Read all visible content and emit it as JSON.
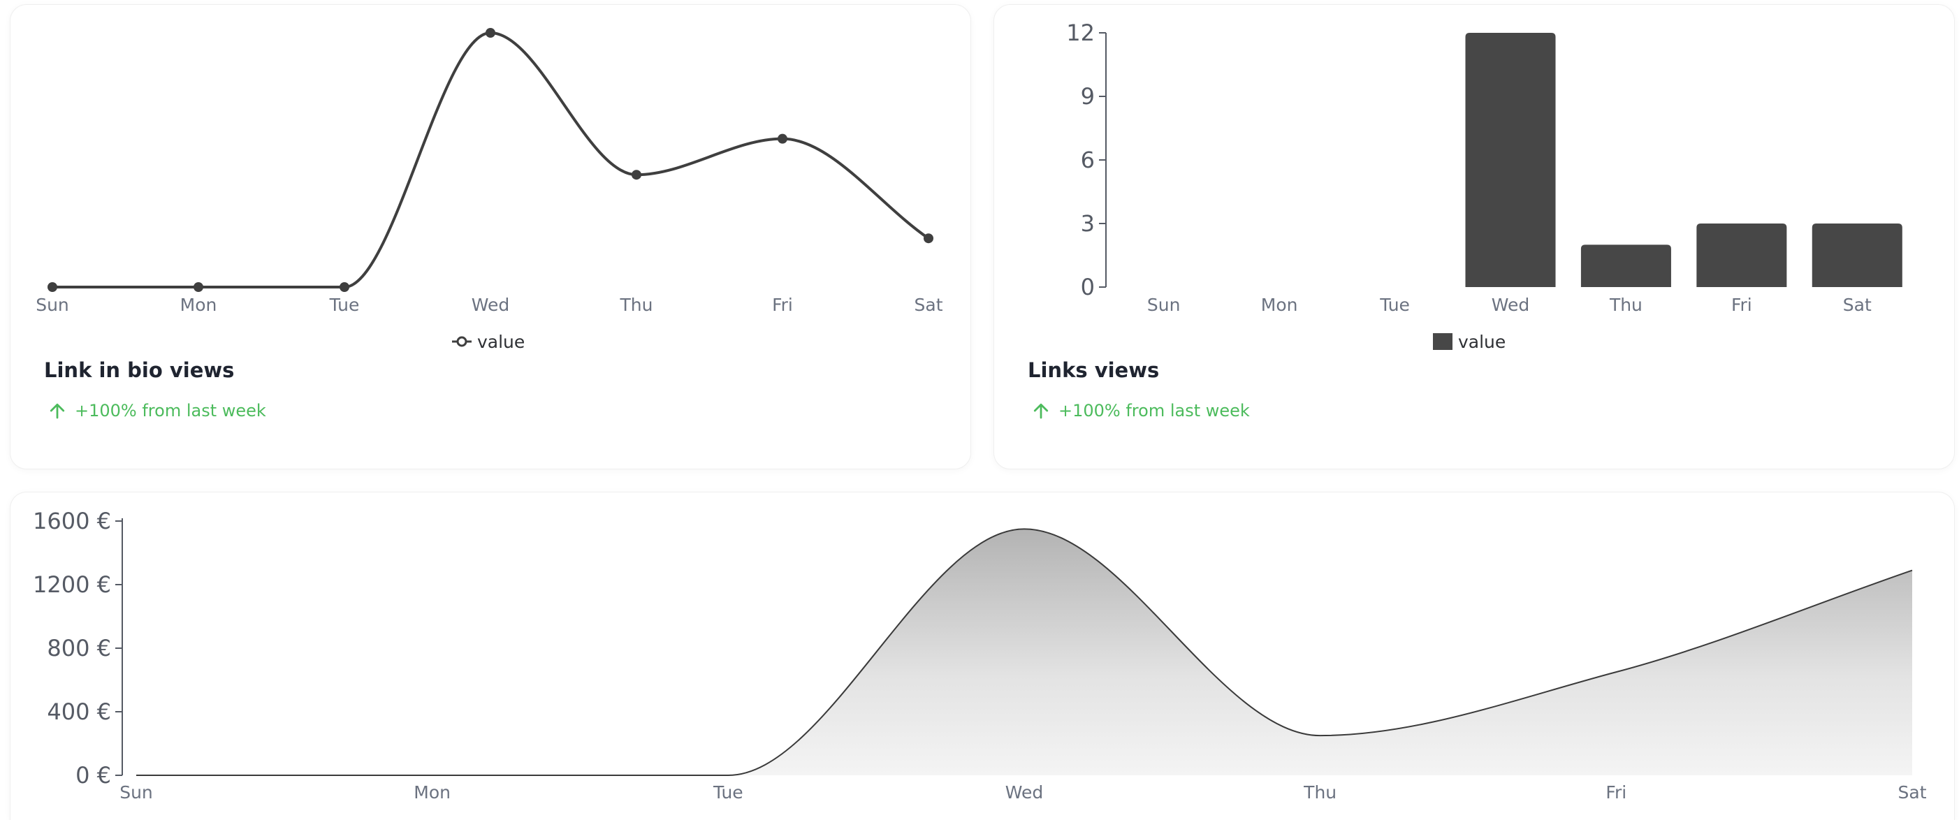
{
  "cards": [
    {
      "title": "Link in bio views",
      "trend_text": "+100% from last week",
      "trend_icon": "arrow-up-icon"
    },
    {
      "title": "Links views",
      "trend_text": "+100% from last week",
      "trend_icon": "arrow-up-icon"
    }
  ],
  "colors": {
    "series": "#3f3f3f",
    "bar": "#474747",
    "positive": "#4cbb5c",
    "axis": "#555a64"
  },
  "chart_data": [
    {
      "type": "line",
      "categories": [
        "Sun",
        "Mon",
        "Tue",
        "Wed",
        "Thu",
        "Fri",
        "Sat"
      ],
      "series": [
        {
          "name": "value",
          "values": [
            0,
            0,
            0,
            12,
            5.3,
            7,
            2.3
          ]
        }
      ],
      "ylim": [
        0,
        12
      ],
      "legend": "bottom-center",
      "grid": false
    },
    {
      "type": "bar",
      "categories": [
        "Sun",
        "Mon",
        "Tue",
        "Wed",
        "Thu",
        "Fri",
        "Sat"
      ],
      "series": [
        {
          "name": "value",
          "values": [
            0,
            0,
            0,
            12,
            2,
            3,
            3
          ]
        }
      ],
      "yticks": [
        "0",
        "3",
        "6",
        "9",
        "12"
      ],
      "ylim": [
        0,
        12
      ],
      "legend": "bottom-center",
      "grid": false
    },
    {
      "type": "area",
      "categories": [
        "Sun",
        "Mon",
        "Tue",
        "Wed",
        "Thu",
        "Fri",
        "Sat"
      ],
      "series": [
        {
          "values": [
            0,
            0,
            0,
            1550,
            250,
            650,
            1290
          ]
        }
      ],
      "yticks": [
        "0 €",
        "400 €",
        "800 €",
        "1200 €",
        "1600 €"
      ],
      "ylim": [
        0,
        1600
      ],
      "grid": false
    }
  ]
}
